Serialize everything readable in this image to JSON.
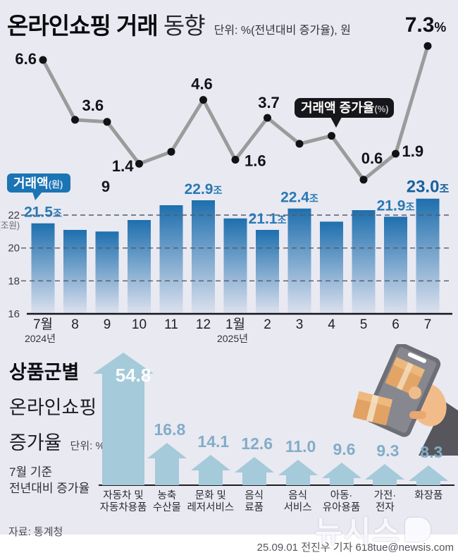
{
  "header": {
    "title_strong": "온라인쇼핑 거래",
    "title_light": " 동향",
    "unit_note": "단위: %(전년대비 증가율), 원"
  },
  "colors": {
    "background": "#e9e9f2",
    "line_grey": "#9b9b9b",
    "dot_black": "#121216",
    "bar_top_blue": "#1e6fae",
    "bar_bottom_fade": "#dce1ee",
    "bar_label_blue": "#2779b4",
    "bar_label_dark_blue": "#16619e",
    "tag_black_bg": "#17171b",
    "tag_blue_bg": "#1b74b4",
    "arrow_fill": "#a5cad9",
    "arrow_label": "#82adc6",
    "axis_text": "#3a3a42"
  },
  "chart_data": [
    {
      "type": "line",
      "name": "거래액 증가율",
      "unit": "%",
      "series_tag": {
        "label": "거래액 증가율",
        "unit": "(%)"
      },
      "x": [
        "7월 2024년",
        "8",
        "9",
        "10",
        "11",
        "12",
        "1월 2025년",
        "2",
        "3",
        "4",
        "5",
        "6",
        "7"
      ],
      "values": [
        6.6,
        3.6,
        3.5,
        1.4,
        2.0,
        4.6,
        1.6,
        3.7,
        2.4,
        2.8,
        0.6,
        1.9,
        7.3
      ],
      "point_labels": [
        "6.6",
        "3.6",
        null,
        "1.4",
        null,
        "4.6",
        "1.6",
        "3.7",
        null,
        null,
        "0.6",
        "1.9",
        "7.3%"
      ],
      "stray_label": "9"
    },
    {
      "type": "bar",
      "name": "거래액",
      "unit": "조원",
      "series_tag": {
        "label": "거래액",
        "unit": "(원)"
      },
      "categories": [
        "7월",
        "8",
        "9",
        "10",
        "11",
        "12",
        "1월",
        "2",
        "3",
        "4",
        "5",
        "6",
        "7"
      ],
      "year_markers": [
        {
          "index": 0,
          "label": "2024년"
        },
        {
          "index": 6,
          "label": "2025년"
        }
      ],
      "values": [
        21.5,
        21.1,
        21.0,
        21.7,
        22.6,
        22.9,
        21.8,
        21.1,
        22.4,
        21.6,
        22.3,
        21.9,
        23.0
      ],
      "bar_labels": [
        "21.5조",
        null,
        null,
        null,
        null,
        "22.9조",
        null,
        "21.1조",
        "22.4조",
        null,
        null,
        "21.9조",
        "23.0조"
      ],
      "ylabel": "(조원)",
      "yticks": [
        16,
        18,
        20,
        22
      ],
      "ylim": [
        16,
        23.6
      ],
      "grid": "dashed"
    },
    {
      "type": "bar",
      "name": "상품군별 온라인쇼핑 증가율",
      "unit": "%",
      "categories": [
        "자동차 및\n자동차용품",
        "농축\n수산물",
        "문화 및\n레저서비스",
        "음식\n료품",
        "음식\n서비스",
        "아동·\n유아용품",
        "가전·\n전자",
        "화장품"
      ],
      "values": [
        54.8,
        16.8,
        14.1,
        12.6,
        11.0,
        9.6,
        9.3,
        8.3
      ],
      "value_labels": [
        "54.8",
        "16.8",
        "14.1",
        "12.6",
        "11.0",
        "9.6",
        "9.3",
        "8.3"
      ]
    }
  ],
  "section2": {
    "title_bold": "상품군별",
    "title_line2": "온라인쇼핑",
    "title_line3": "증가율",
    "unit_note": "단위: %",
    "basis_line1": "7월 기준",
    "basis_line2": "전년대비 증가율"
  },
  "footer": {
    "source": "자료: 통계청",
    "byline": "25.09.01 전진우 기자 618tue@newsis.com",
    "watermark": "뉴시스"
  }
}
